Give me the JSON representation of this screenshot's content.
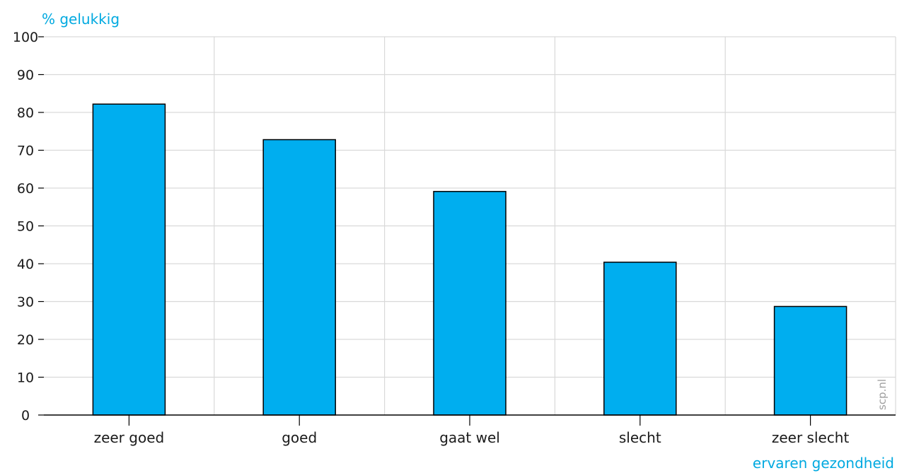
{
  "chart_data": {
    "type": "bar",
    "ylabel": "% gelukkig",
    "xlabel": "ervaren gezondheid",
    "categories": [
      "zeer goed",
      "goed",
      "gaat wel",
      "slecht",
      "zeer slecht"
    ],
    "values": [
      82.2,
      72.8,
      59.1,
      40.4,
      28.7
    ],
    "ylim": [
      0,
      100
    ],
    "yticks": [
      0,
      10,
      20,
      30,
      40,
      50,
      60,
      70,
      80,
      90,
      100
    ],
    "grid": true,
    "bar_color": "#00aeef",
    "bar_edge_color": "#000000",
    "title_color": "#00a9e0",
    "source": "scp.nl"
  }
}
